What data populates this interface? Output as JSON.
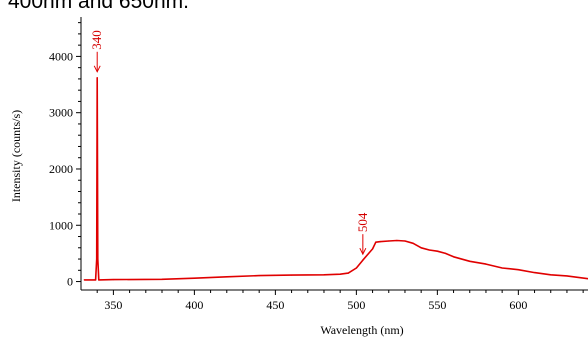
{
  "caption": "400nm and 650nm.",
  "chart_data": {
    "type": "line",
    "title": "",
    "xlabel": "Wavelength (nm)",
    "ylabel": "Intensity (counts/s)",
    "xlim": [
      330,
      643
    ],
    "ylim": [
      -150,
      4700
    ],
    "xticks": [
      350,
      400,
      450,
      500,
      550,
      600
    ],
    "yticks": [
      0,
      1000,
      2000,
      3000,
      4000
    ],
    "grid": false,
    "color": "#e00000",
    "series": [
      {
        "x": [
          332,
          339,
          339.7,
          340,
          340.4,
          341,
          350,
          380,
          400,
          420,
          440,
          460,
          480,
          490,
          495,
          500,
          504,
          507,
          510,
          512,
          515,
          520,
          525,
          530,
          535,
          540,
          545,
          550,
          555,
          560,
          570,
          580,
          590,
          600,
          610,
          620,
          630,
          643
        ],
        "y": [
          30,
          30,
          400,
          3620,
          400,
          30,
          35,
          40,
          60,
          85,
          105,
          115,
          120,
          130,
          150,
          240,
          380,
          480,
          580,
          700,
          710,
          720,
          730,
          720,
          680,
          600,
          560,
          540,
          500,
          440,
          360,
          310,
          240,
          210,
          160,
          120,
          100,
          50
        ]
      }
    ],
    "annotations": [
      {
        "text": "340",
        "x": 340,
        "y": 3620
      },
      {
        "text": "504",
        "x": 504,
        "y": 380
      }
    ]
  }
}
